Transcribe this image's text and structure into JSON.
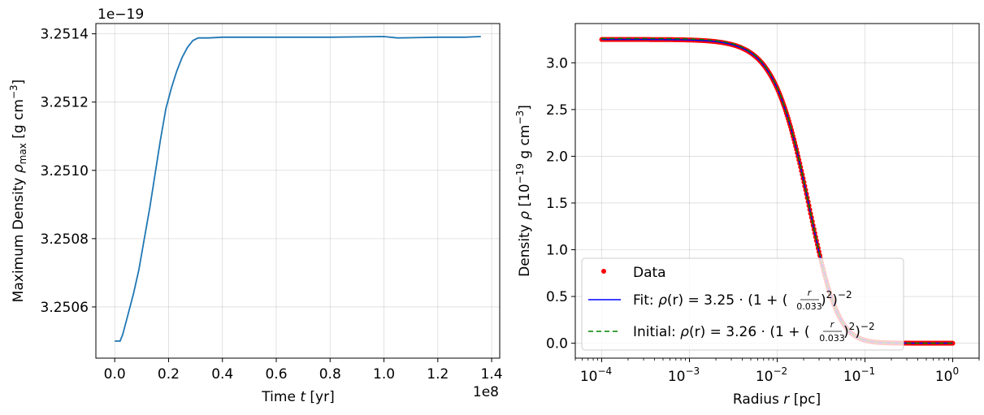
{
  "chart_data": [
    {
      "type": "line",
      "xlabel_pre": "Time ",
      "xlabel_var": "t",
      "xlabel_post": " [yr]",
      "ylabel_pre": "Maximum Density ",
      "ylabel_var": "ρ",
      "ylabel_sub": "max",
      "ylabel_post": " [g cm",
      "ylabel_sup": "−3",
      "ylabel_end": "]",
      "x_offset_text": "1e8",
      "y_offset_text": "1e−19",
      "xlim": [
        -0.07,
        1.43
      ],
      "ylim": [
        3.25045,
        3.25143
      ],
      "xticks": [
        0.0,
        0.2,
        0.4,
        0.6,
        0.8,
        1.0,
        1.2,
        1.4
      ],
      "xtick_labels": [
        "0.0",
        "0.2",
        "0.4",
        "0.6",
        "0.8",
        "1.0",
        "1.2",
        "1.4"
      ],
      "yticks": [
        3.2506,
        3.2508,
        3.251,
        3.2512,
        3.2514
      ],
      "ytick_labels": [
        "3.2506",
        "3.2508",
        "3.2510",
        "3.2512",
        "3.2514"
      ],
      "grid": true,
      "color": "#1f77b4",
      "series": [
        {
          "x": [
            0.0,
            0.01,
            0.02,
            0.03,
            0.05,
            0.07,
            0.09,
            0.11,
            0.13,
            0.15,
            0.17,
            0.19,
            0.21,
            0.23,
            0.25,
            0.27,
            0.29,
            0.31,
            0.33,
            0.35,
            0.4,
            0.5,
            0.6,
            0.8,
            1.0,
            1.05,
            1.2,
            1.3,
            1.36
          ],
          "y": [
            3.2505,
            3.2505,
            3.2505,
            3.25052,
            3.25058,
            3.25064,
            3.25071,
            3.2508,
            3.25089,
            3.25099,
            3.25109,
            3.25118,
            3.25124,
            3.25129,
            3.25133,
            3.25136,
            3.25138,
            3.251388,
            3.251388,
            3.251388,
            3.25139,
            3.25139,
            3.25139,
            3.25139,
            3.251392,
            3.251388,
            3.25139,
            3.25139,
            3.251392
          ]
        }
      ]
    },
    {
      "type": "scatter",
      "xlabel_pre": "Radius ",
      "xlabel_var": "r",
      "xlabel_post": " [pc]",
      "ylabel_pre": "Density ",
      "ylabel_var": "ρ",
      "ylabel_post": " [10",
      "ylabel_sup": "−19",
      "ylabel_end": " g cm",
      "ylabel_sup2": "−3",
      "ylabel_close": "]",
      "xscale": "log",
      "xlim": [
        5e-05,
        2.0
      ],
      "ylim": [
        -0.16,
        3.42
      ],
      "xtick_exponents": [
        -4,
        -3,
        -2,
        -1,
        0
      ],
      "xtick_labels": [
        "10",
        "10",
        "10",
        "10",
        "10"
      ],
      "xtick_sups": [
        "−4",
        "−3",
        "−2",
        "−1",
        "0"
      ],
      "yticks": [
        0.0,
        0.5,
        1.0,
        1.5,
        2.0,
        2.5,
        3.0
      ],
      "ytick_labels": [
        "0.0",
        "0.5",
        "1.0",
        "1.5",
        "2.0",
        "2.5",
        "3.0"
      ],
      "grid": true,
      "legend_position": "lower-left",
      "data_range": [
        0.0001,
        1.0
      ],
      "series": [
        {
          "name": "Data",
          "style": "scatter",
          "color": "#ff0000",
          "amplitude": 3.25,
          "scale_radius": 0.033
        },
        {
          "name": "Fit",
          "style": "line",
          "color": "#0000ff",
          "amplitude": 3.25,
          "scale_radius": 0.033
        },
        {
          "name": "Initial",
          "style": "dashed",
          "color": "#008000",
          "amplitude": 3.26,
          "scale_radius": 0.033
        }
      ],
      "legend": [
        {
          "label_pre": "Data",
          "formula_amp": "",
          "formula_scale": "",
          "marker": "dot",
          "color": "#ff0000"
        },
        {
          "label_pre": "Fit: ",
          "formula_amp": "3.25",
          "formula_scale": "0.033",
          "marker": "line",
          "color": "#0000ff"
        },
        {
          "label_pre": "Initial: ",
          "formula_amp": "3.26",
          "formula_scale": "0.033",
          "marker": "dashed",
          "color": "#008000"
        }
      ],
      "formula_rho": "ρ",
      "formula_r": "r",
      "formula_eq": "(r) = ",
      "formula_dot": " · ",
      "formula_open": "(1 + (",
      "formula_close": ")",
      "formula_sq": "2",
      "formula_end": ")",
      "formula_exp": "−2"
    }
  ]
}
